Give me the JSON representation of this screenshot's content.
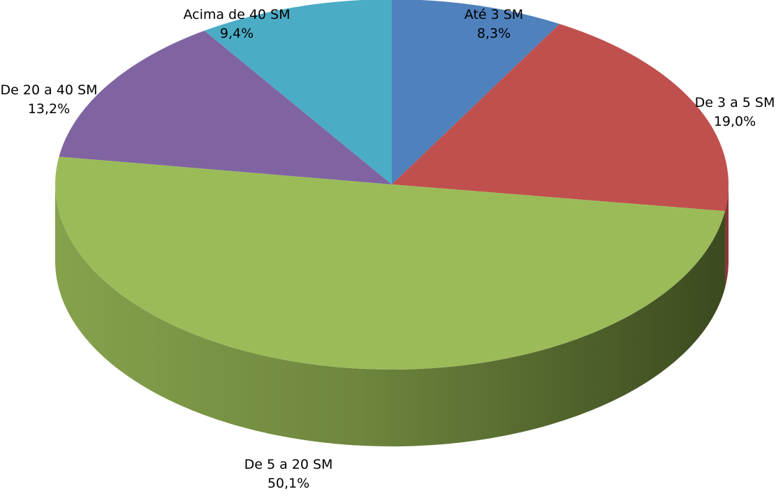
{
  "chart_data": {
    "type": "pie",
    "title": "",
    "slices": [
      {
        "label": "Até 3 SM",
        "value": 8.3,
        "display": "8,3%",
        "color": "#4F81BD"
      },
      {
        "label": "De 3 a 5 SM",
        "value": 19.0,
        "display": "19,0%",
        "color": "#C0504D"
      },
      {
        "label": "De 5 a 20 SM",
        "value": 50.1,
        "display": "50,1%",
        "color": "#9BBB59"
      },
      {
        "label": "De 20 a 40 SM",
        "value": 13.2,
        "display": "13,2%",
        "color": "#8064A2"
      },
      {
        "label": "Acima de 40 SM",
        "value": 9.4,
        "display": "9,4%",
        "color": "#4BACC6"
      }
    ],
    "style": "3d-pie",
    "start_angle": "12 o'clock, clockwise",
    "legend": "none",
    "labels_placement": "outside"
  }
}
